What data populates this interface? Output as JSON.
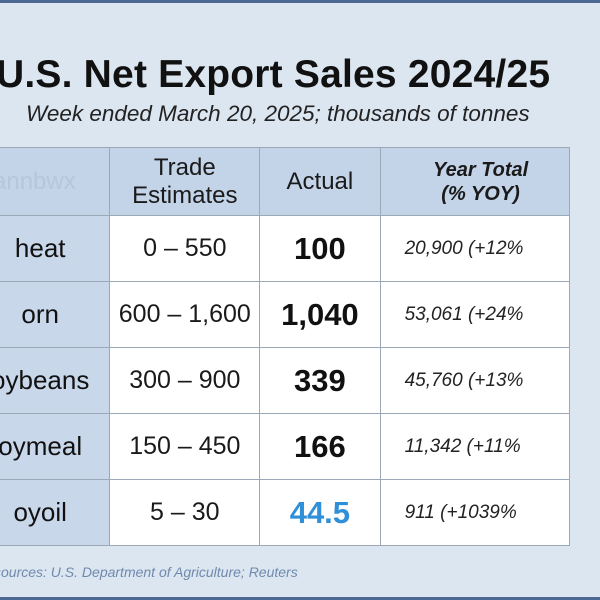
{
  "title": "U.S. Net Export Sales 2024/25",
  "subtitle": "Week ended March 20, 2025; thousands of tonnes",
  "watermark": "annbwx",
  "columns": {
    "trade_estimates": "Trade Estimates",
    "actual": "Actual",
    "year_total": "Year Total (% YOY)"
  },
  "rows": [
    {
      "name": "heat",
      "estimate": "0 – 550",
      "actual": "100",
      "year_total": "20,900 (+12%"
    },
    {
      "name": "orn",
      "estimate": "600 – 1,600",
      "actual": "1,040",
      "year_total": "53,061 (+24%"
    },
    {
      "name": "oybeans",
      "estimate": "300 – 900",
      "actual": "339",
      "year_total": "45,760 (+13%"
    },
    {
      "name": "oymeal",
      "estimate": "150 – 450",
      "actual": "166",
      "year_total": "11,342 (+11%"
    },
    {
      "name": "oyoil",
      "estimate": "5 – 30",
      "actual": "44.5",
      "year_total": "911 (+1039%",
      "highlight": true
    }
  ],
  "source": "sources: U.S. Department of Agriculture; Reuters",
  "colors": {
    "header_fill": "#c3d3e8",
    "row_label_fill": "#c9d7ea",
    "background": "#dce6f1",
    "highlight": "#2f8fd8",
    "source_text": "#6f89ad"
  }
}
